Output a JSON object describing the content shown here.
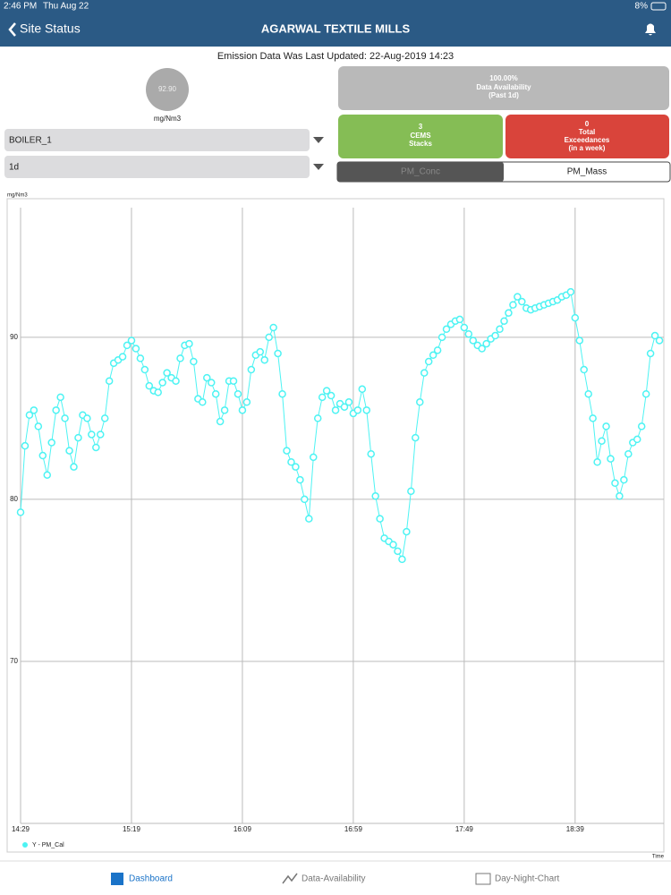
{
  "status_bar": {
    "time": "2:46 PM",
    "date": "Thu Aug 22",
    "battery": "8%"
  },
  "header": {
    "back": "Site Status",
    "title": "AGARWAL TEXTILE MILLS"
  },
  "updated": "Emission Data Was Last Updated:  22-Aug-2019 14:23",
  "gauge": {
    "value": "92.90",
    "unit": "mg/Nm3"
  },
  "dropdowns": [
    "BOILER_1",
    "1d"
  ],
  "tiles": {
    "availability": [
      "100.00%",
      "Data Availability",
      "(Past 1d)"
    ],
    "stacks": [
      "3",
      "CEMS",
      "Stacks"
    ],
    "exceedances": [
      "0",
      "Total",
      "Exceedances",
      "(in a week)"
    ]
  },
  "toggle": [
    "PM_Conc",
    "PM_Mass"
  ],
  "tabs": [
    "Dashboard",
    "Data-Availability",
    "Day-Night-Chart"
  ],
  "chart_data": {
    "type": "line",
    "y_label": "mg/Nm3",
    "x_label": "Time",
    "ylim": [
      60,
      98
    ],
    "yticks": [
      70,
      80,
      90
    ],
    "xlim": [
      "14:29",
      "19:19"
    ],
    "xticks": [
      "14:29",
      "15:19",
      "16:09",
      "16:59",
      "17:49",
      "18:39"
    ],
    "grid": true,
    "legend": "bottom-left",
    "x": [
      "14:29",
      "14:31",
      "14:33",
      "14:35",
      "14:37",
      "14:39",
      "14:41",
      "14:43",
      "14:45",
      "14:47",
      "14:49",
      "14:51",
      "14:53",
      "14:55",
      "14:57",
      "14:59",
      "15:01",
      "15:03",
      "15:05",
      "15:07",
      "15:09",
      "15:11",
      "15:13",
      "15:15",
      "15:17",
      "15:19",
      "15:21",
      "15:23",
      "15:25",
      "15:27",
      "15:29",
      "15:31",
      "15:33",
      "15:35",
      "15:37",
      "15:39",
      "15:41",
      "15:43",
      "15:45",
      "15:47",
      "15:49",
      "15:51",
      "15:53",
      "15:55",
      "15:57",
      "15:59",
      "16:01",
      "16:03",
      "16:05",
      "16:07",
      "16:09",
      "16:11",
      "16:13",
      "16:15",
      "16:17",
      "16:19",
      "16:21",
      "16:23",
      "16:25",
      "16:27",
      "16:29",
      "16:31",
      "16:33",
      "16:35",
      "16:37",
      "16:39",
      "16:41",
      "16:43",
      "16:45",
      "16:47",
      "16:49",
      "16:51",
      "16:53",
      "16:55",
      "16:57",
      "16:59",
      "17:01",
      "17:03",
      "17:05",
      "17:07",
      "17:09",
      "17:11",
      "17:13",
      "17:15",
      "17:17",
      "17:19",
      "17:21",
      "17:23",
      "17:25",
      "17:27",
      "17:29",
      "17:31",
      "17:33",
      "17:35",
      "17:37",
      "17:39",
      "17:41",
      "17:43",
      "17:45",
      "17:47",
      "17:49",
      "17:51",
      "17:53",
      "17:55",
      "17:57",
      "17:59",
      "18:01",
      "18:03",
      "18:05",
      "18:07",
      "18:09",
      "18:11",
      "18:13",
      "18:15",
      "18:17",
      "18:19",
      "18:21",
      "18:23",
      "18:25",
      "18:27",
      "18:29",
      "18:31",
      "18:33",
      "18:35",
      "18:37",
      "18:39",
      "18:41",
      "18:43",
      "18:45",
      "18:47",
      "18:49",
      "18:51",
      "18:53",
      "18:55",
      "18:57",
      "18:59",
      "19:01",
      "19:03",
      "19:05",
      "19:07",
      "19:09",
      "19:11",
      "19:13",
      "19:15",
      "19:17"
    ],
    "series": [
      {
        "name": "Y - PM_Cal",
        "color": "#4df3f3",
        "values": [
          79.2,
          83.3,
          85.2,
          85.5,
          84.5,
          82.7,
          81.5,
          83.5,
          85.5,
          86.3,
          85.0,
          83.0,
          82.0,
          83.8,
          85.2,
          85.0,
          84.0,
          83.2,
          84.0,
          85.0,
          87.3,
          88.4,
          88.6,
          88.8,
          89.5,
          89.8,
          89.3,
          88.7,
          88.0,
          87.0,
          86.7,
          86.6,
          87.2,
          87.8,
          87.5,
          87.3,
          88.7,
          89.5,
          89.6,
          88.5,
          86.2,
          86.0,
          87.5,
          87.2,
          86.5,
          84.8,
          85.5,
          87.3,
          87.3,
          86.5,
          85.5,
          86.0,
          88.0,
          88.9,
          89.1,
          88.6,
          90.0,
          90.6,
          89.0,
          86.5,
          83.0,
          82.3,
          82.0,
          81.2,
          80.0,
          78.8,
          82.6,
          85.0,
          86.3,
          86.7,
          86.4,
          85.5,
          85.9,
          85.7,
          86.0,
          85.3,
          85.5,
          86.8,
          85.5,
          82.8,
          80.2,
          78.8,
          77.6,
          77.4,
          77.2,
          76.8,
          76.3,
          78.0,
          80.5,
          83.8,
          86.0,
          87.8,
          88.5,
          88.9,
          89.2,
          90.0,
          90.5,
          90.8,
          91.0,
          91.1,
          90.6,
          90.2,
          89.8,
          89.5,
          89.3,
          89.6,
          89.9,
          90.1,
          90.5,
          91.0,
          91.5,
          92.0,
          92.5,
          92.2,
          91.8,
          91.7,
          91.8,
          91.9,
          92.0,
          92.1,
          92.2,
          92.3,
          92.5,
          92.6,
          92.8,
          91.2,
          89.8,
          88.0,
          86.5,
          85.0,
          82.3,
          83.6,
          84.5,
          82.5,
          81.0,
          80.2,
          81.2,
          82.8,
          83.5,
          83.7,
          84.5,
          86.5,
          89.0,
          90.1,
          89.8
        ]
      }
    ]
  }
}
